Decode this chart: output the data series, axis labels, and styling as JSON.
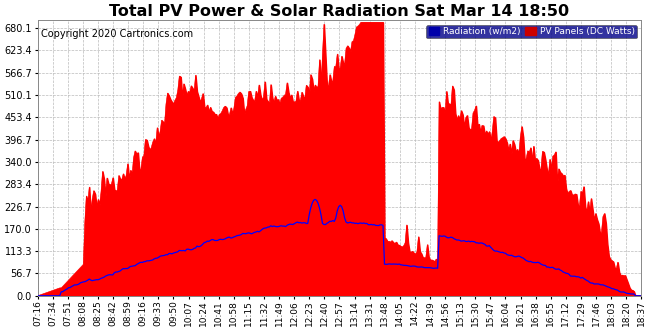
{
  "title": "Total PV Power & Solar Radiation Sat Mar 14 18:50",
  "copyright": "Copyright 2020 Cartronics.com",
  "yticks": [
    0.0,
    56.7,
    113.3,
    170.0,
    226.7,
    283.4,
    340.0,
    396.7,
    453.4,
    510.1,
    566.7,
    623.4,
    680.1
  ],
  "ymax": 700,
  "legend_radiation_label": "Radiation (w/m2)",
  "legend_pv_label": "PV Panels (DC Watts)",
  "legend_radiation_bg": "#0000aa",
  "legend_pv_bg": "#cc0000",
  "pv_fill_color": "#ff0000",
  "radiation_line_color": "#0000ff",
  "background_color": "#ffffff",
  "grid_color": "#bbbbbb",
  "title_fontsize": 11.5,
  "copyright_fontsize": 7,
  "tick_fontsize": 7,
  "xtick_labels": [
    "07:16",
    "07:34",
    "07:51",
    "08:08",
    "08:25",
    "08:42",
    "08:59",
    "09:16",
    "09:33",
    "09:50",
    "10:07",
    "10:24",
    "10:41",
    "10:58",
    "11:15",
    "11:32",
    "11:49",
    "12:06",
    "12:23",
    "12:40",
    "12:57",
    "13:14",
    "13:31",
    "13:48",
    "14:05",
    "14:22",
    "14:39",
    "14:56",
    "15:13",
    "15:30",
    "15:47",
    "16:04",
    "16:21",
    "16:38",
    "16:55",
    "17:12",
    "17:29",
    "17:46",
    "18:03",
    "18:20",
    "18:37"
  ]
}
